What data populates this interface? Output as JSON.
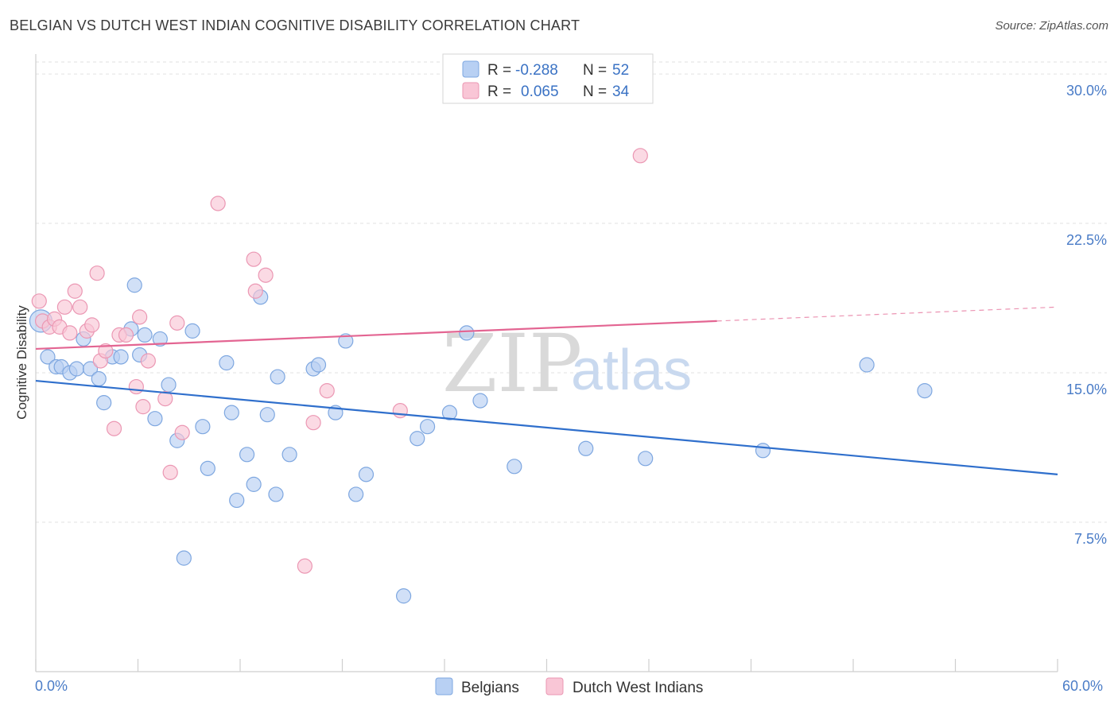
{
  "title": "BELGIAN VS DUTCH WEST INDIAN COGNITIVE DISABILITY CORRELATION CHART",
  "source": "Source: ZipAtlas.com",
  "watermark": {
    "zip": "ZIP",
    "atlas": "atlas"
  },
  "colors": {
    "belgians_fill": "#b8d0f3",
    "belgians_stroke": "#7ea7e0",
    "belgians_line": "#2f6fcc",
    "dwi_fill": "#f9c6d6",
    "dwi_stroke": "#eb97b3",
    "dwi_line": "#e36592",
    "tick_text": "#4a7cc7"
  },
  "legend_top": {
    "rows": [
      {
        "r_label": "R =",
        "r_value": "-0.288",
        "n_label": "N =",
        "n_value": "52"
      },
      {
        "r_label": "R =",
        "r_value": "0.065",
        "n_label": "N =",
        "n_value": "34"
      }
    ]
  },
  "chart_data": {
    "type": "scatter",
    "title": "BELGIAN VS DUTCH WEST INDIAN COGNITIVE DISABILITY CORRELATION CHART",
    "xlabel": "",
    "ylabel": "Cognitive Disability",
    "xlim": [
      0,
      60
    ],
    "ylim": [
      0,
      31
    ],
    "x_ticks": [
      "0.0%",
      "60.0%"
    ],
    "y_ticks": [
      {
        "value": 7.5,
        "label": "7.5%"
      },
      {
        "value": 15.0,
        "label": "15.0%"
      },
      {
        "value": 22.5,
        "label": "22.5%"
      },
      {
        "value": 30.0,
        "label": "30.0%"
      }
    ],
    "grid": true,
    "legend_position": "bottom",
    "series": [
      {
        "name": "Belgians",
        "points": [
          [
            0.3,
            17.6
          ],
          [
            0.7,
            15.8
          ],
          [
            1.2,
            15.3
          ],
          [
            1.5,
            15.3
          ],
          [
            2.0,
            15.0
          ],
          [
            2.4,
            15.2
          ],
          [
            2.8,
            16.7
          ],
          [
            3.2,
            15.2
          ],
          [
            3.7,
            14.7
          ],
          [
            4.0,
            13.5
          ],
          [
            4.5,
            15.8
          ],
          [
            5.0,
            15.8
          ],
          [
            5.6,
            17.2
          ],
          [
            5.8,
            19.4
          ],
          [
            6.1,
            15.9
          ],
          [
            6.4,
            16.9
          ],
          [
            7.0,
            12.7
          ],
          [
            7.3,
            16.7
          ],
          [
            7.8,
            14.4
          ],
          [
            8.3,
            11.6
          ],
          [
            8.7,
            5.7
          ],
          [
            9.2,
            17.1
          ],
          [
            9.8,
            12.3
          ],
          [
            10.1,
            10.2
          ],
          [
            11.2,
            15.5
          ],
          [
            11.5,
            13.0
          ],
          [
            11.8,
            8.6
          ],
          [
            12.4,
            10.9
          ],
          [
            12.8,
            9.4
          ],
          [
            13.2,
            18.8
          ],
          [
            13.6,
            12.9
          ],
          [
            14.1,
            8.9
          ],
          [
            14.2,
            14.8
          ],
          [
            14.9,
            10.9
          ],
          [
            16.3,
            15.2
          ],
          [
            16.6,
            15.4
          ],
          [
            17.6,
            13.0
          ],
          [
            18.2,
            16.6
          ],
          [
            18.8,
            8.9
          ],
          [
            19.4,
            9.9
          ],
          [
            21.6,
            3.8
          ],
          [
            22.4,
            11.7
          ],
          [
            23.0,
            12.3
          ],
          [
            24.3,
            13.0
          ],
          [
            25.3,
            17.0
          ],
          [
            26.1,
            13.6
          ],
          [
            28.1,
            10.3
          ],
          [
            32.3,
            11.2
          ],
          [
            35.8,
            10.7
          ],
          [
            42.7,
            11.1
          ],
          [
            48.8,
            15.4
          ],
          [
            52.2,
            14.1
          ]
        ],
        "trend": {
          "x": [
            0,
            60
          ],
          "y": [
            14.6,
            9.9
          ]
        }
      },
      {
        "name": "Dutch West Indians",
        "points": [
          [
            0.2,
            18.6
          ],
          [
            0.4,
            17.6
          ],
          [
            0.8,
            17.3
          ],
          [
            1.1,
            17.7
          ],
          [
            1.4,
            17.3
          ],
          [
            1.7,
            18.3
          ],
          [
            2.0,
            17.0
          ],
          [
            2.3,
            19.1
          ],
          [
            2.6,
            18.3
          ],
          [
            3.0,
            17.1
          ],
          [
            3.3,
            17.4
          ],
          [
            3.6,
            20.0
          ],
          [
            3.8,
            15.6
          ],
          [
            4.1,
            16.1
          ],
          [
            4.6,
            12.2
          ],
          [
            4.9,
            16.9
          ],
          [
            5.3,
            16.9
          ],
          [
            5.9,
            14.3
          ],
          [
            6.1,
            17.8
          ],
          [
            6.3,
            13.3
          ],
          [
            6.6,
            15.6
          ],
          [
            7.6,
            13.7
          ],
          [
            7.9,
            10.0
          ],
          [
            8.3,
            17.5
          ],
          [
            8.6,
            12.0
          ],
          [
            10.7,
            23.5
          ],
          [
            12.8,
            20.7
          ],
          [
            12.9,
            19.1
          ],
          [
            13.5,
            19.9
          ],
          [
            15.8,
            5.3
          ],
          [
            16.3,
            12.5
          ],
          [
            17.1,
            14.1
          ],
          [
            21.4,
            13.1
          ],
          [
            35.5,
            25.9
          ]
        ],
        "trend_solid": {
          "x": [
            0,
            40
          ],
          "y": [
            16.2,
            17.6
          ]
        },
        "trend_dashed": {
          "x": [
            40,
            60
          ],
          "y": [
            17.6,
            18.3
          ]
        }
      }
    ]
  }
}
